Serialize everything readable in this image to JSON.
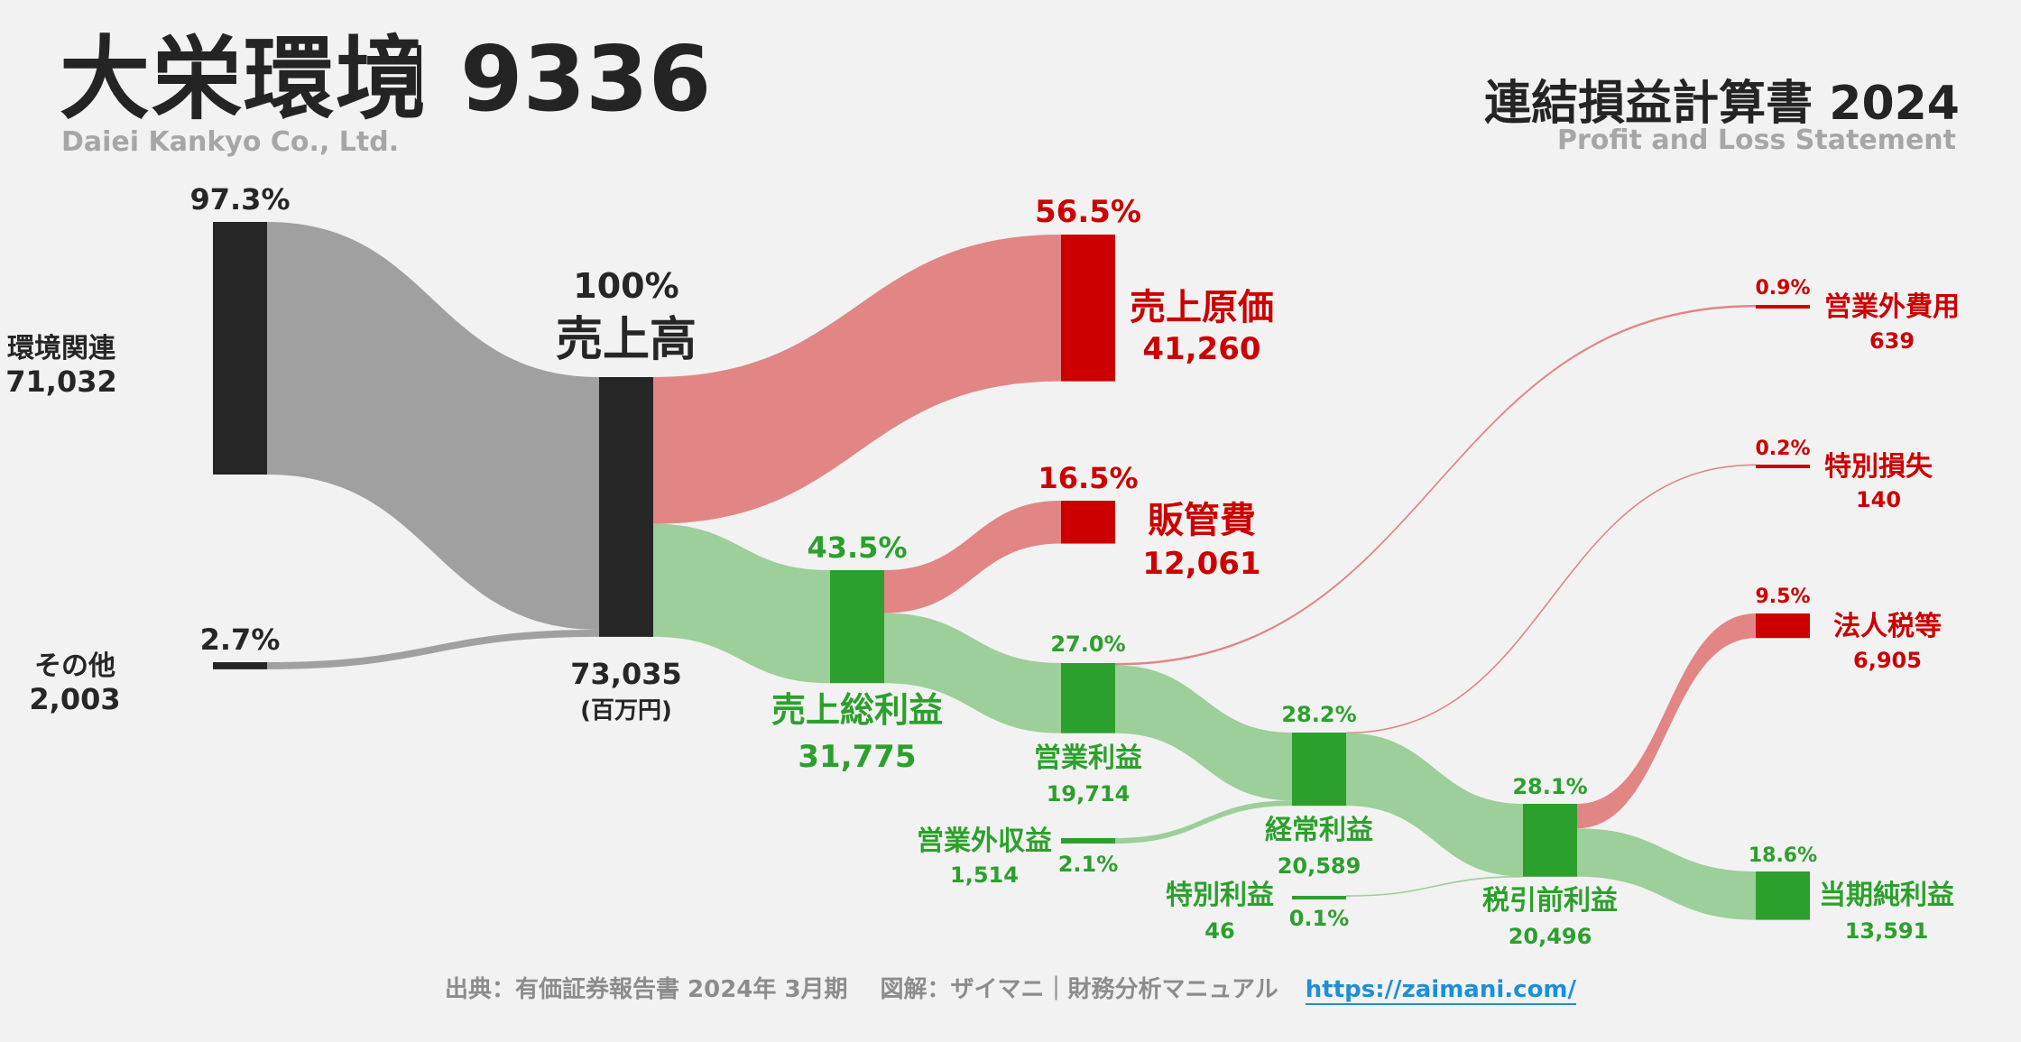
{
  "header": {
    "company_name": "大栄環境",
    "ticker": "9336",
    "company_en": "Daiei Kankyo Co., Ltd.",
    "report_title": "連結損益計算書 2024",
    "report_sub": "Profit and Loss Statement"
  },
  "footer": {
    "source": "出典：有価証券報告書 2024年 3月期",
    "credit": "図解：ザイマニ｜財務分析マニュアル",
    "url": "https://zaimani.com/"
  },
  "colors": {
    "dark": "#262626",
    "gray_flow": "#a0a0a0",
    "red": "#cc0000",
    "red_flow": "#e28585",
    "green": "#2ca02c",
    "green_flow": "#9ccf99"
  },
  "chart_data": {
    "type": "sankey",
    "unit": "(百万円)",
    "nodes": [
      {
        "id": "seg_env",
        "label": "環境関連",
        "value": 71032,
        "value_label": "71,032",
        "percent_label": "97.3%",
        "kind": "dark"
      },
      {
        "id": "seg_other",
        "label": "その他",
        "value": 2003,
        "value_label": "2,003",
        "percent_label": "2.7%",
        "kind": "dark"
      },
      {
        "id": "revenue",
        "label": "売上高",
        "value": 73035,
        "value_label": "73,035",
        "percent_label": "100%",
        "kind": "dark"
      },
      {
        "id": "cogs",
        "label": "売上原価",
        "value": 41260,
        "value_label": "41,260",
        "percent_label": "56.5%",
        "kind": "red"
      },
      {
        "id": "gross",
        "label": "売上総利益",
        "value": 31775,
        "value_label": "31,775",
        "percent_label": "43.5%",
        "kind": "green"
      },
      {
        "id": "sga",
        "label": "販管費",
        "value": 12061,
        "value_label": "12,061",
        "percent_label": "16.5%",
        "kind": "red"
      },
      {
        "id": "operating",
        "label": "営業利益",
        "value": 19714,
        "value_label": "19,714",
        "percent_label": "27.0%",
        "kind": "green"
      },
      {
        "id": "nonop_income",
        "label": "営業外収益",
        "value": 1514,
        "value_label": "1,514",
        "percent_label": "2.1%",
        "kind": "green"
      },
      {
        "id": "nonop_expense",
        "label": "営業外費用",
        "value": 639,
        "value_label": "639",
        "percent_label": "0.9%",
        "kind": "red"
      },
      {
        "id": "ordinary",
        "label": "経常利益",
        "value": 20589,
        "value_label": "20,589",
        "percent_label": "28.2%",
        "kind": "green"
      },
      {
        "id": "special_gain",
        "label": "特別利益",
        "value": 46,
        "value_label": "46",
        "percent_label": "0.1%",
        "kind": "green"
      },
      {
        "id": "special_loss",
        "label": "特別損失",
        "value": 140,
        "value_label": "140",
        "percent_label": "0.2%",
        "kind": "red"
      },
      {
        "id": "pretax",
        "label": "税引前利益",
        "value": 20496,
        "value_label": "20,496",
        "percent_label": "28.1%",
        "kind": "green"
      },
      {
        "id": "tax",
        "label": "法人税等",
        "value": 6905,
        "value_label": "6,905",
        "percent_label": "9.5%",
        "kind": "red"
      },
      {
        "id": "net",
        "label": "当期純利益",
        "value": 13591,
        "value_label": "13,591",
        "percent_label": "18.6%",
        "kind": "green"
      }
    ],
    "links": [
      {
        "source": "seg_env",
        "target": "revenue",
        "value": 71032
      },
      {
        "source": "seg_other",
        "target": "revenue",
        "value": 2003
      },
      {
        "source": "revenue",
        "target": "cogs",
        "value": 41260
      },
      {
        "source": "revenue",
        "target": "gross",
        "value": 31775
      },
      {
        "source": "gross",
        "target": "sga",
        "value": 12061
      },
      {
        "source": "gross",
        "target": "operating",
        "value": 19714
      },
      {
        "source": "operating",
        "target": "nonop_expense",
        "value": 639
      },
      {
        "source": "operating",
        "target": "ordinary",
        "value": 19075
      },
      {
        "source": "nonop_income",
        "target": "ordinary",
        "value": 1514
      },
      {
        "source": "ordinary",
        "target": "special_loss",
        "value": 140
      },
      {
        "source": "ordinary",
        "target": "pretax",
        "value": 20449
      },
      {
        "source": "special_gain",
        "target": "pretax",
        "value": 46
      },
      {
        "source": "pretax",
        "target": "tax",
        "value": 6905
      },
      {
        "source": "pretax",
        "target": "net",
        "value": 13591
      }
    ]
  }
}
